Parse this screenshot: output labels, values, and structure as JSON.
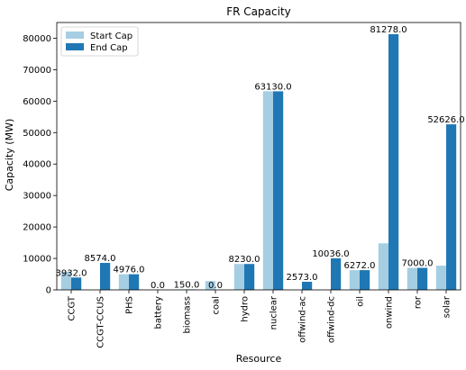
{
  "chart_data": {
    "type": "bar",
    "title": "FR Capacity",
    "xlabel": "Resource",
    "ylabel": "Capacity (MW)",
    "ylim": [
      0,
      85000
    ],
    "yticks": [
      0,
      10000,
      20000,
      30000,
      40000,
      50000,
      60000,
      70000,
      80000
    ],
    "categories": [
      "CCGT",
      "CCGT-CCUS",
      "PHS",
      "battery",
      "biomass",
      "coal",
      "hydro",
      "nuclear",
      "offwind-ac",
      "offwind-dc",
      "oil",
      "onwind",
      "ror",
      "solar"
    ],
    "series": [
      {
        "name": "Start Cap",
        "color": "#a6cee3",
        "values": [
          5800,
          0,
          4976,
          0,
          150,
          2800,
          8230,
          63130,
          0,
          0,
          6272,
          14800,
          7000,
          7700
        ]
      },
      {
        "name": "End Cap",
        "color": "#1f78b4",
        "values": [
          3932,
          8574,
          4976,
          0,
          150,
          0,
          8230,
          63130,
          2573,
          10036,
          6272,
          81278,
          7000,
          52626
        ]
      }
    ],
    "data_labels": [
      "3932.0",
      "8574.0",
      "4976.0",
      "0.0",
      "150.0",
      "0.0",
      "8230.0",
      "63130.0",
      "2573.0",
      "10036.0",
      "6272.0",
      "81278.0",
      "7000.0",
      "52626.0"
    ],
    "legend_position": "top-left",
    "grid": false
  }
}
